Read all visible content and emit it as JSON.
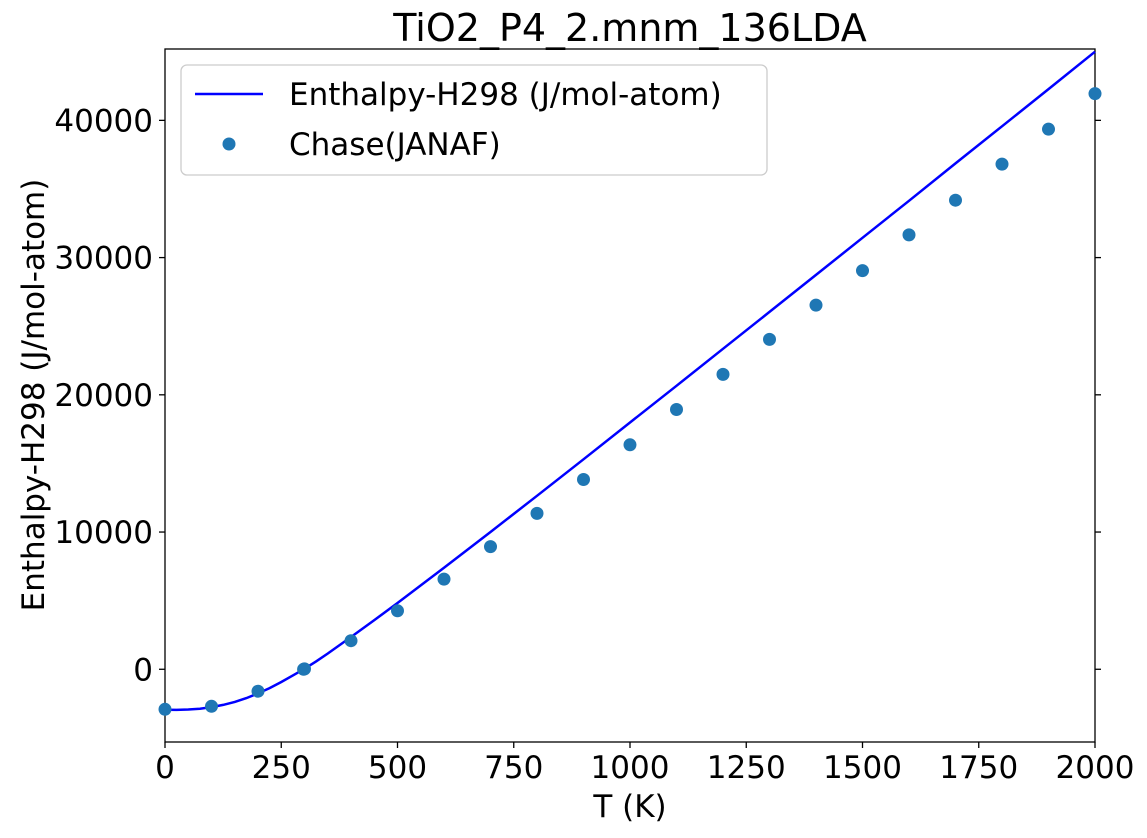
{
  "chart_data": {
    "type": "line",
    "title": "TiO2_P4_2.mnm_136LDA",
    "xlabel": "T (K)",
    "ylabel": "Enthalpy-H298 (J/mol-atom)",
    "xlim": [
      0,
      2000
    ],
    "ylim": [
      -5300,
      45200
    ],
    "xticks": [
      0,
      250,
      500,
      750,
      1000,
      1250,
      1500,
      1750,
      2000
    ],
    "yticks": [
      0,
      10000,
      20000,
      30000,
      40000
    ],
    "grid": false,
    "legend_position": "top-left",
    "series": [
      {
        "name": "Enthalpy-H298 (J/mol-atom)",
        "kind": "line",
        "color": "#0000ff",
        "x": [
          0,
          25,
          50,
          75,
          100,
          125,
          150,
          175,
          200,
          225,
          250,
          275,
          298.15,
          325,
          350,
          400,
          450,
          500,
          600,
          700,
          800,
          900,
          1000,
          1100,
          1200,
          1300,
          1400,
          1500,
          1600,
          1700,
          1800,
          1900,
          2000
        ],
        "y": [
          -2950,
          -2960,
          -2930,
          -2870,
          -2760,
          -2600,
          -2380,
          -2100,
          -1760,
          -1370,
          -930,
          -450,
          0,
          570,
          1150,
          2350,
          3580,
          4830,
          7400,
          10000,
          12640,
          15300,
          17980,
          20660,
          23350,
          26040,
          28740,
          31440,
          34140,
          36860,
          39570,
          42280,
          45000
        ]
      },
      {
        "name": "Chase(JANAF)",
        "kind": "scatter",
        "color": "#1f77b4",
        "x": [
          0,
          100,
          200,
          298.15,
          300,
          400,
          500,
          600,
          700,
          800,
          900,
          1000,
          1100,
          1200,
          1300,
          1400,
          1500,
          1600,
          1700,
          1800,
          1900,
          2000
        ],
        "y": [
          -2920,
          -2700,
          -1600,
          0,
          30,
          2080,
          4260,
          6570,
          8940,
          11360,
          13830,
          16360,
          18930,
          21490,
          24040,
          26540,
          29050,
          31650,
          34180,
          36810,
          39360,
          41950
        ]
      }
    ]
  }
}
